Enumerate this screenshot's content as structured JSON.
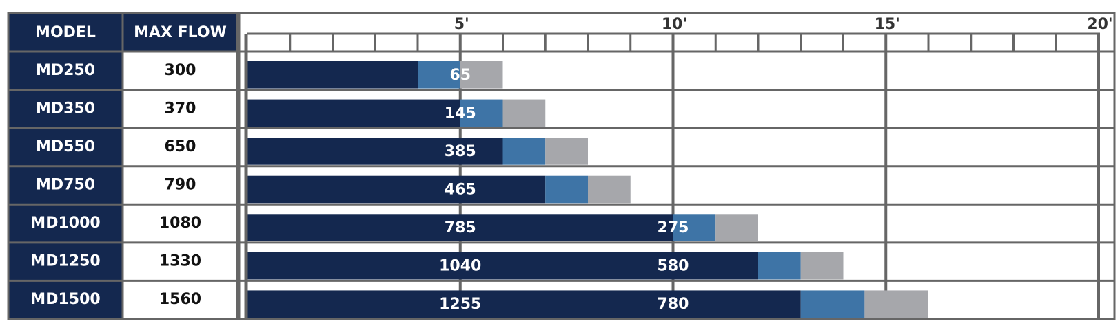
{
  "chart_data": {
    "type": "bar",
    "columns": [
      "MODEL",
      "MAX FLOW"
    ],
    "categories": [
      "MD250",
      "MD350",
      "MD550",
      "MD750",
      "MD1000",
      "MD1250",
      "MD1500"
    ],
    "max_flow": [
      300,
      370,
      650,
      790,
      1080,
      1330,
      1560
    ],
    "series": [
      {
        "color": "#14284f",
        "values": [
          4,
          5,
          6,
          7,
          10,
          12,
          13
        ]
      },
      {
        "color": "#3e74a6",
        "values": [
          1,
          1,
          1,
          1,
          1,
          1,
          1.5
        ]
      },
      {
        "color": "#a6a7ab",
        "values": [
          1,
          1,
          1,
          1,
          1,
          1,
          1.5
        ]
      }
    ],
    "flow_at_5ft": [
      65,
      145,
      385,
      465,
      785,
      1040,
      1255
    ],
    "flow_at_10ft": [
      null,
      null,
      null,
      null,
      275,
      580,
      780
    ],
    "xlim": [
      0,
      20
    ],
    "xticks": [
      {
        "value": 5,
        "label": "5'"
      },
      {
        "value": 10,
        "label": "10'"
      },
      {
        "value": 15,
        "label": "15'"
      },
      {
        "value": 20,
        "label": "20'"
      }
    ],
    "xminorticks": [
      1,
      2,
      3,
      4,
      6,
      7,
      8,
      9,
      11,
      12,
      13,
      14,
      16,
      17,
      18,
      19
    ],
    "grid": true
  }
}
